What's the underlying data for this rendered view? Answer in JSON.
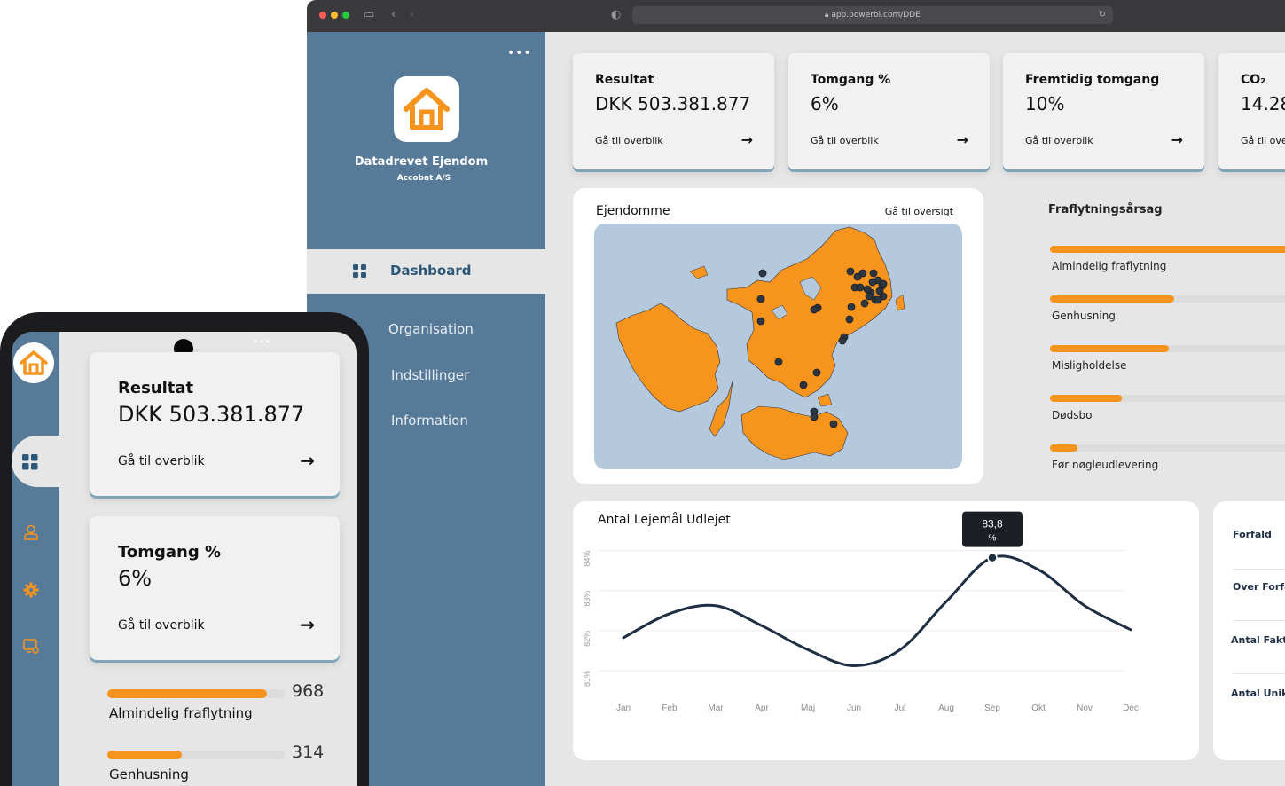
{
  "browser": {
    "url": "app.powerbi.com/DDE"
  },
  "sidebar": {
    "brand_name": "Datadrevet Ejendom",
    "brand_sub": "Accobat A/S",
    "menu_dots": "•••",
    "active_item": "Dashboard",
    "items": [
      {
        "label": "Organisation"
      },
      {
        "label": "Indstillinger"
      },
      {
        "label": "Information"
      }
    ]
  },
  "kpis": [
    {
      "title": "Resultat",
      "value": "DKK 503.381.877",
      "link": "Gå til overblik"
    },
    {
      "title": "Tomgang %",
      "value": "6%",
      "link": "Gå til overblik"
    },
    {
      "title": "Fremtidig tomgang",
      "value": "10%",
      "link": "Gå til overblik"
    },
    {
      "title": "CO₂",
      "value": "14.28",
      "link": "Gå til ove"
    }
  ],
  "map": {
    "title": "Ejendomme",
    "link": "Gå til oversigt"
  },
  "fraflytning": {
    "title": "Fraflytningsårsag",
    "items": [
      {
        "label": "Almindelig fraflytning",
        "fraction": 1.0
      },
      {
        "label": "Genhusning",
        "fraction": 0.5
      },
      {
        "label": "Misligholdelse",
        "fraction": 0.48
      },
      {
        "label": "Dødsbo",
        "fraction": 0.29
      },
      {
        "label": "Før nøgleudlevering",
        "fraction": 0.11
      }
    ]
  },
  "chart_data": {
    "type": "line",
    "title": "Antal Lejemål Udlejet",
    "categories": [
      "Jan",
      "Feb",
      "Mar",
      "Apr",
      "Maj",
      "Jun",
      "Jul",
      "Aug",
      "Sep",
      "Okt",
      "Nov",
      "Dec"
    ],
    "series": [
      {
        "values": [
          81.8,
          82.4,
          82.6,
          82.1,
          81.5,
          81.1,
          81.5,
          82.7,
          83.8,
          83.5,
          82.6,
          82.0
        ]
      }
    ],
    "yticks": [
      "81%",
      "82%",
      "83%",
      "84%"
    ],
    "ylim": [
      80.8,
      84.3
    ],
    "tooltip": {
      "category": "Sep",
      "value_text": "83,8",
      "unit": "%"
    },
    "grid": true
  },
  "right_list": {
    "items": [
      {
        "label": "Forfald"
      },
      {
        "label": "Over Forfa"
      },
      {
        "label": "Antal Fakt"
      },
      {
        "label": "Antal Unik"
      }
    ]
  },
  "phone": {
    "menu_dots": "•••",
    "cards": [
      {
        "title": "Resultat",
        "value": "DKK 503.381.877",
        "link": "Gå til overblik"
      },
      {
        "title": "Tomgang %",
        "value": "6%",
        "link": "Gå til overblik"
      }
    ],
    "bars": [
      {
        "label": "Almindelig fraflytning",
        "value": "968",
        "fraction": 0.9
      },
      {
        "label": "Genhusning",
        "value": "314",
        "fraction": 0.42
      }
    ]
  },
  "colors": {
    "accent": "#f7941d",
    "sidebar": "#577a99",
    "background": "#e6e6e6",
    "line": "#1e2f44"
  }
}
